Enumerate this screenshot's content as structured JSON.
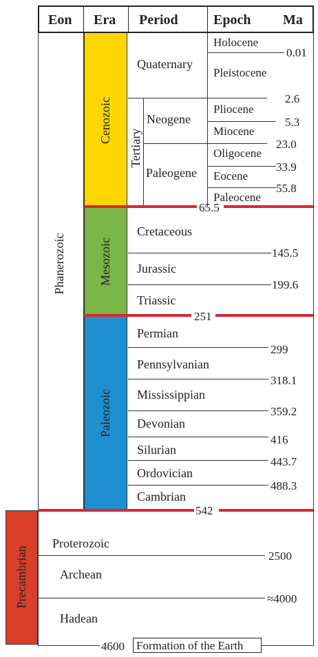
{
  "header": {
    "eon": "Eon",
    "era": "Era",
    "period": "Period",
    "epoch": "Epoch",
    "ma": "Ma"
  },
  "eons": {
    "phanerozoic": "Phanerozoic",
    "precambrian": "Precambrian"
  },
  "eras": {
    "cenozoic": "Cenozoic",
    "mesozoic": "Mesozoic",
    "paleozoic": "Paleozoic",
    "proterozoic": "Proterozoic",
    "archean": "Archean",
    "hadean": "Hadean"
  },
  "periods": {
    "quaternary": "Quaternary",
    "tertiary": "Tertiary",
    "neogene": "Neogene",
    "paleogene": "Paleogene",
    "cretaceous": "Cretaceous",
    "jurassic": "Jurassic",
    "triassic": "Triassic",
    "permian": "Permian",
    "pennsylvanian": "Pennsylvanian",
    "mississippian": "Mississippian",
    "devonian": "Devonian",
    "silurian": "Silurian",
    "ordovician": "Ordovician",
    "cambrian": "Cambrian"
  },
  "epochs": {
    "holocene": "Holocene",
    "pleistocene": "Pleistocene",
    "pliocene": "Pliocene",
    "miocene": "Miocene",
    "oligocene": "Oligocene",
    "eocene": "Eocene",
    "paleocene": "Paleocene"
  },
  "ages": {
    "a0_01": "0.01",
    "a2_6": "2.6",
    "a5_3": "5.3",
    "a23_0": "23.0",
    "a33_9": "33.9",
    "a55_8": "55.8",
    "a65_5": "65.5",
    "a145_5": "145.5",
    "a199_6": "199.6",
    "a251": "251",
    "a299": "299",
    "a318_1": "318.1",
    "a359_2": "359.2",
    "a416": "416",
    "a443_7": "443.7",
    "a488_3": "488.3",
    "a542": "542",
    "a2500": "2500",
    "a4000": "≈4000",
    "a4600": "4600"
  },
  "formation": "Formation of the Earth",
  "colors": {
    "cenozoic": "#ffd700",
    "mesozoic": "#7ab648",
    "paleozoic": "#1e90d2",
    "precambrian": "#d9402b",
    "boundary": "#d7282f"
  }
}
